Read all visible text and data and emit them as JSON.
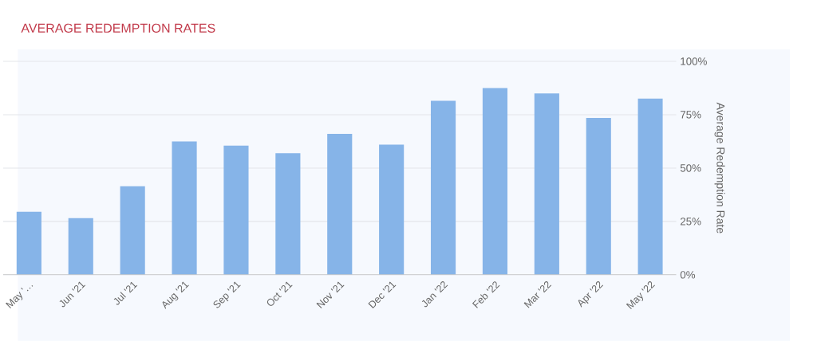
{
  "chart_data": {
    "type": "bar",
    "title": "AVERAGE REDEMPTION RATES",
    "ylabel": "Average Redemption Rate",
    "categories": [
      "May '…",
      "Jun '21",
      "Jul '21",
      "Aug '21",
      "Sep '21",
      "Oct '21",
      "Nov '21",
      "Dec '21",
      "Jan '22",
      "Feb '22",
      "Mar '22",
      "Apr '22",
      "May '22"
    ],
    "values": [
      29.5,
      26.5,
      41.5,
      62.5,
      60.5,
      57,
      66,
      61,
      81.5,
      87.5,
      85,
      73.5,
      82.5
    ],
    "color": "#86b4e8",
    "ylim": [
      0,
      100
    ],
    "yticks": [
      {
        "value": 0,
        "label": "0%"
      },
      {
        "value": 25,
        "label": "25%"
      },
      {
        "value": 50,
        "label": "50%"
      },
      {
        "value": 75,
        "label": "75%"
      },
      {
        "value": 100,
        "label": "100%"
      }
    ],
    "grid": "y"
  }
}
